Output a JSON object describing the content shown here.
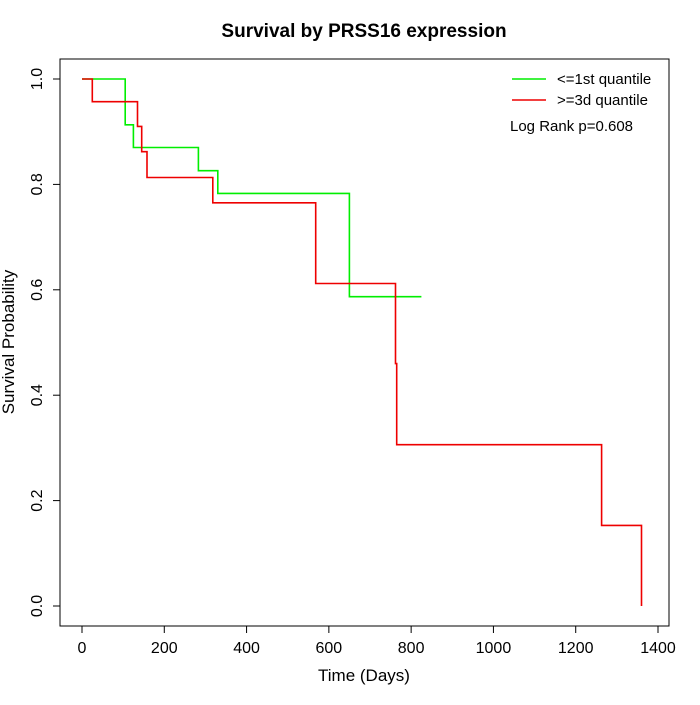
{
  "chart_data": {
    "type": "line",
    "title": "Survival by PRSS16 expression",
    "xlabel": "Time (Days)",
    "ylabel": "Survival Probability",
    "xlim": [
      0,
      1400
    ],
    "ylim": [
      0,
      1
    ],
    "x_ticks": [
      0,
      200,
      400,
      600,
      800,
      1000,
      1200,
      1400
    ],
    "y_ticks": [
      0.0,
      0.2,
      0.4,
      0.6,
      0.8,
      1.0
    ],
    "x_tick_labels": [
      "0",
      "200",
      "400",
      "600",
      "800",
      "1000",
      "1200",
      "1400"
    ],
    "y_tick_labels": [
      "0.0",
      "0.2",
      "0.4",
      "0.6",
      "0.8",
      "1.0"
    ],
    "grid": false,
    "legend_position": "top-right",
    "annotation": "Log Rank p=0.608",
    "series": [
      {
        "name": "<=1st quantile",
        "color": "#00ee00",
        "step_points": [
          [
            0,
            1.0
          ],
          [
            105,
            1.0
          ],
          [
            105,
            0.913
          ],
          [
            125,
            0.913
          ],
          [
            125,
            0.87
          ],
          [
            283,
            0.87
          ],
          [
            283,
            0.826
          ],
          [
            330,
            0.826
          ],
          [
            330,
            0.783
          ],
          [
            650,
            0.783
          ],
          [
            650,
            0.587
          ],
          [
            825,
            0.587
          ]
        ]
      },
      {
        "name": ">=3d quantile",
        "color": "#ee0000",
        "step_points": [
          [
            0,
            1.0
          ],
          [
            25,
            1.0
          ],
          [
            25,
            0.957
          ],
          [
            135,
            0.957
          ],
          [
            135,
            0.91
          ],
          [
            145,
            0.91
          ],
          [
            145,
            0.862
          ],
          [
            158,
            0.862
          ],
          [
            158,
            0.813
          ],
          [
            318,
            0.813
          ],
          [
            318,
            0.765
          ],
          [
            568,
            0.765
          ],
          [
            568,
            0.612
          ],
          [
            762,
            0.612
          ],
          [
            762,
            0.46
          ],
          [
            765,
            0.46
          ],
          [
            765,
            0.306
          ],
          [
            1263,
            0.306
          ],
          [
            1263,
            0.153
          ],
          [
            1360,
            0.153
          ],
          [
            1360,
            0.0
          ]
        ]
      }
    ]
  }
}
